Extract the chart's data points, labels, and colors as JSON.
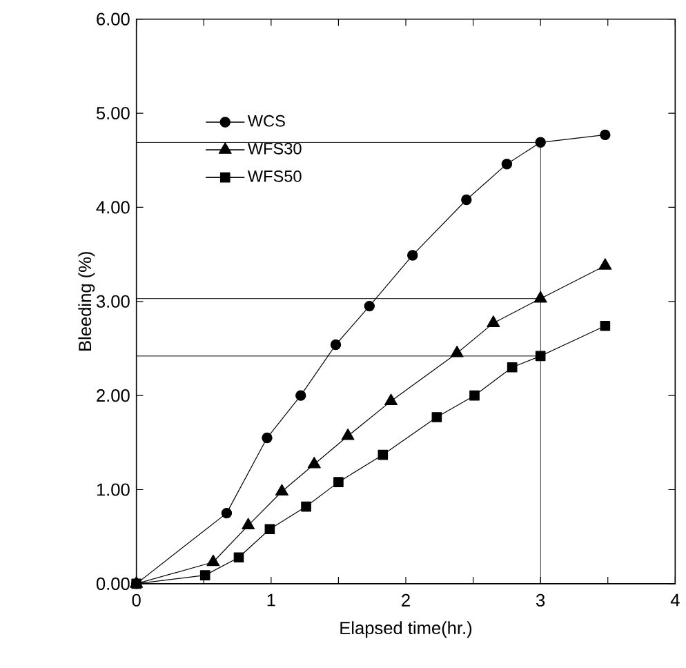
{
  "chart_data": {
    "type": "line",
    "xlabel": "Elapsed time(hr.)",
    "ylabel": "Bleeding (%)",
    "xlim": [
      0,
      4
    ],
    "ylim": [
      0,
      6
    ],
    "xticks": [
      0,
      {
        "value": 0.5,
        "label": null
      },
      1,
      {
        "value": 1.5,
        "label": null
      },
      2,
      {
        "value": 2.5,
        "label": null
      },
      3,
      {
        "value": 3.5,
        "label": null
      },
      4
    ],
    "yticks": [
      {
        "value": 0,
        "label": "0.00"
      },
      {
        "value": 1,
        "label": "1.00"
      },
      {
        "value": 2,
        "label": "2.00"
      },
      {
        "value": 3,
        "label": "3.00"
      },
      {
        "value": 4,
        "label": "4.00"
      },
      {
        "value": 5,
        "label": "5.00"
      },
      {
        "value": 6,
        "label": "6.00"
      }
    ],
    "grid": false,
    "legend": "top left",
    "series": [
      {
        "name": "WCS",
        "color": "#000000",
        "marker": "circle",
        "x": [
          0,
          0.67,
          0.97,
          1.22,
          1.48,
          1.73,
          2.05,
          2.45,
          2.75,
          3.0,
          3.48
        ],
        "values": [
          0,
          0.75,
          1.55,
          2.0,
          2.54,
          2.95,
          3.49,
          4.08,
          4.46,
          4.69,
          4.77
        ]
      },
      {
        "name": "WFS30",
        "color": "#000000",
        "marker": "triangle",
        "x": [
          0,
          0.57,
          0.83,
          1.08,
          1.32,
          1.57,
          1.89,
          2.38,
          2.65,
          3.0,
          3.48
        ],
        "values": [
          0,
          0.23,
          0.62,
          0.98,
          1.27,
          1.57,
          1.94,
          2.45,
          2.77,
          3.03,
          3.38
        ]
      },
      {
        "name": "WFS50",
        "color": "#000000",
        "marker": "square",
        "x": [
          0,
          0.51,
          0.76,
          0.99,
          1.26,
          1.5,
          1.83,
          2.23,
          2.51,
          2.79,
          3.0,
          3.48
        ],
        "values": [
          0,
          0.09,
          0.28,
          0.58,
          0.82,
          1.08,
          1.37,
          1.77,
          2.0,
          2.3,
          2.42,
          2.74
        ]
      }
    ],
    "ref_lines": [
      {
        "axis": "y",
        "value": 4.69
      },
      {
        "axis": "y",
        "value": 3.03
      },
      {
        "axis": "y",
        "value": 2.42
      },
      {
        "axis": "x",
        "value": 3
      }
    ]
  }
}
